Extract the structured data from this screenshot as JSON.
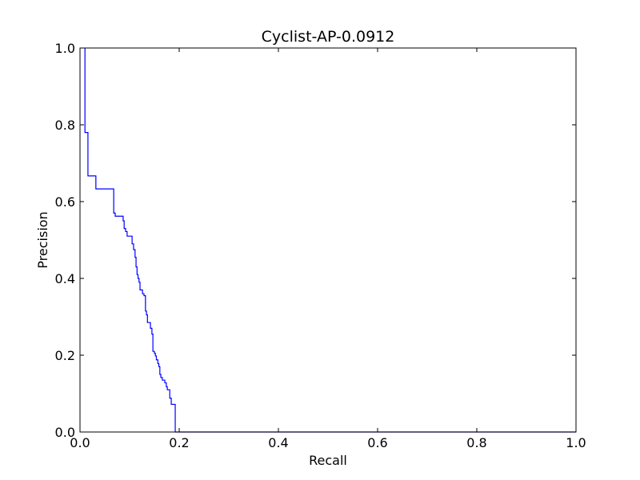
{
  "chart_data": {
    "type": "line",
    "title": "Cyclist-AP-0.0912",
    "xlabel": "Recall",
    "ylabel": "Precision",
    "xlim": [
      0,
      1
    ],
    "ylim": [
      0,
      1
    ],
    "xticks": [
      0,
      0.2,
      0.4,
      0.6,
      0.8,
      1
    ],
    "yticks": [
      0,
      0.2,
      0.4,
      0.6,
      0.8,
      1
    ],
    "xtick_labels": [
      "0.0",
      "0.2",
      "0.4",
      "0.6",
      "0.8",
      "1.0"
    ],
    "ytick_labels": [
      "0.0",
      "0.2",
      "0.4",
      "0.6",
      "0.8",
      "1.0"
    ],
    "grid": false,
    "line_style": "steps",
    "series": [
      {
        "color": "#0000ff",
        "points": [
          [
            0.01,
            1.0
          ],
          [
            0.01,
            0.78
          ],
          [
            0.016,
            0.78
          ],
          [
            0.016,
            0.667
          ],
          [
            0.032,
            0.667
          ],
          [
            0.032,
            0.633
          ],
          [
            0.068,
            0.633
          ],
          [
            0.068,
            0.57
          ],
          [
            0.071,
            0.57
          ],
          [
            0.071,
            0.562
          ],
          [
            0.087,
            0.562
          ],
          [
            0.087,
            0.55
          ],
          [
            0.089,
            0.55
          ],
          [
            0.089,
            0.53
          ],
          [
            0.092,
            0.53
          ],
          [
            0.092,
            0.522
          ],
          [
            0.095,
            0.522
          ],
          [
            0.095,
            0.51
          ],
          [
            0.105,
            0.51
          ],
          [
            0.105,
            0.49
          ],
          [
            0.108,
            0.49
          ],
          [
            0.108,
            0.475
          ],
          [
            0.111,
            0.475
          ],
          [
            0.111,
            0.455
          ],
          [
            0.113,
            0.455
          ],
          [
            0.113,
            0.43
          ],
          [
            0.115,
            0.43
          ],
          [
            0.115,
            0.41
          ],
          [
            0.117,
            0.41
          ],
          [
            0.117,
            0.4
          ],
          [
            0.119,
            0.4
          ],
          [
            0.119,
            0.39
          ],
          [
            0.121,
            0.39
          ],
          [
            0.121,
            0.37
          ],
          [
            0.126,
            0.37
          ],
          [
            0.126,
            0.36
          ],
          [
            0.129,
            0.36
          ],
          [
            0.129,
            0.355
          ],
          [
            0.132,
            0.355
          ],
          [
            0.132,
            0.315
          ],
          [
            0.134,
            0.315
          ],
          [
            0.134,
            0.305
          ],
          [
            0.136,
            0.305
          ],
          [
            0.136,
            0.285
          ],
          [
            0.142,
            0.285
          ],
          [
            0.142,
            0.27
          ],
          [
            0.145,
            0.27
          ],
          [
            0.145,
            0.255
          ],
          [
            0.147,
            0.255
          ],
          [
            0.147,
            0.21
          ],
          [
            0.15,
            0.21
          ],
          [
            0.15,
            0.205
          ],
          [
            0.152,
            0.205
          ],
          [
            0.152,
            0.198
          ],
          [
            0.154,
            0.198
          ],
          [
            0.154,
            0.188
          ],
          [
            0.157,
            0.188
          ],
          [
            0.157,
            0.178
          ],
          [
            0.159,
            0.178
          ],
          [
            0.159,
            0.17
          ],
          [
            0.161,
            0.17
          ],
          [
            0.161,
            0.15
          ],
          [
            0.163,
            0.15
          ],
          [
            0.163,
            0.142
          ],
          [
            0.166,
            0.142
          ],
          [
            0.166,
            0.135
          ],
          [
            0.171,
            0.135
          ],
          [
            0.171,
            0.128
          ],
          [
            0.174,
            0.128
          ],
          [
            0.174,
            0.118
          ],
          [
            0.176,
            0.118
          ],
          [
            0.176,
            0.11
          ],
          [
            0.181,
            0.11
          ],
          [
            0.181,
            0.088
          ],
          [
            0.184,
            0.088
          ],
          [
            0.184,
            0.072
          ],
          [
            0.192,
            0.072
          ],
          [
            0.192,
            0.0
          ],
          [
            1.0,
            0.0
          ]
        ]
      }
    ]
  }
}
